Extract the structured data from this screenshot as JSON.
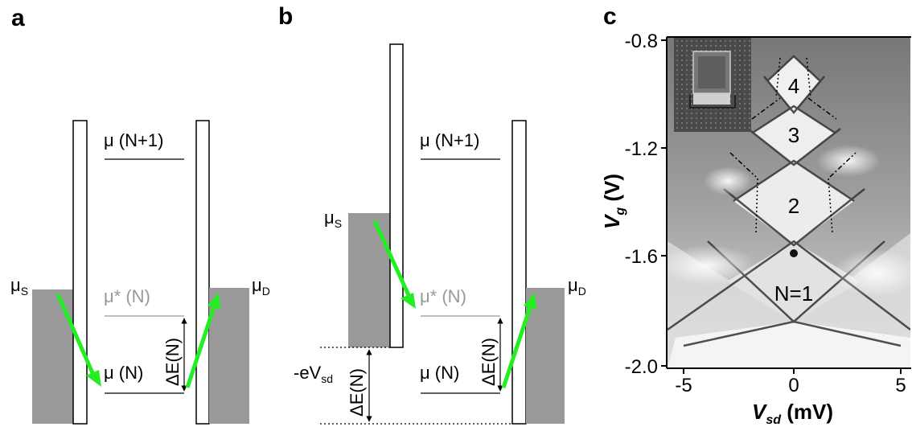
{
  "panel_a": {
    "label": "a",
    "mu_n1": "μ (N+1)",
    "mu_star": "μ* (N)",
    "mu_n": "μ (N)",
    "mu_s": "μ",
    "mu_s_sub": "S",
    "mu_d": "μ",
    "mu_d_sub": "D",
    "delta_e": "ΔE(N)"
  },
  "panel_b": {
    "label": "b",
    "mu_n1": "μ (N+1)",
    "mu_star": "μ* (N)",
    "mu_n": "μ (N)",
    "mu_s": "μ",
    "mu_s_sub": "S",
    "mu_d": "μ",
    "mu_d_sub": "D",
    "delta_e_left": "ΔE(N)",
    "delta_e_right": "ΔE(N)",
    "bias_prefix": "-eV",
    "bias_sub": "sd"
  },
  "panel_c": {
    "label": "c",
    "region_labels": [
      "4",
      "3",
      "2",
      "N=1"
    ],
    "y_ticks": [
      "-0.8",
      "-1.2",
      "-1.6",
      "-2.0"
    ],
    "x_ticks": [
      "-5",
      "0",
      "5"
    ],
    "y_label_var": "V",
    "y_label_sub": "g",
    "y_label_unit": " (V)",
    "x_label_var": "V",
    "x_label_sub": "sd",
    "x_label_unit": " (mV)"
  },
  "colors": {
    "reservoir": "#999999",
    "arrow": "#22ee22",
    "faded_text": "#999999"
  }
}
